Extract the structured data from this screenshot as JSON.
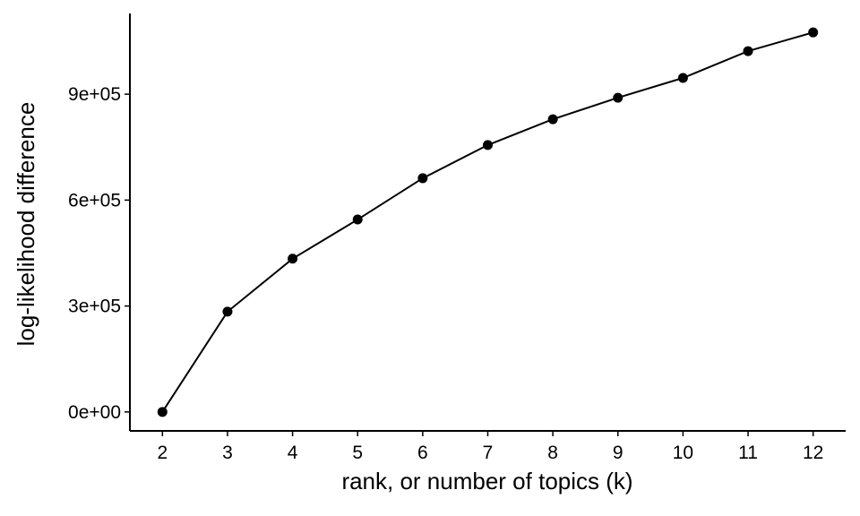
{
  "chart_data": {
    "type": "line",
    "x_label": "rank, or number of topics (k)",
    "y_label": "log-likelihood difference",
    "x": [
      2,
      3,
      4,
      5,
      6,
      7,
      8,
      9,
      10,
      11,
      12
    ],
    "values": [
      0,
      284000,
      434000,
      545000,
      662000,
      756000,
      829000,
      890000,
      946000,
      1022000,
      1075000
    ],
    "color": "#000000",
    "xlim": [
      1.5,
      12.5
    ],
    "xticks": [
      2,
      3,
      4,
      5,
      6,
      7,
      8,
      9,
      10,
      11,
      12
    ],
    "ylim": [
      -53750,
      1128750
    ],
    "yticks": [
      {
        "value": 0,
        "label": "0e+00"
      },
      {
        "value": 300000,
        "label": "3e+05"
      },
      {
        "value": 600000,
        "label": "6e+05"
      },
      {
        "value": 900000,
        "label": "9e+05"
      }
    ],
    "grid": false
  }
}
